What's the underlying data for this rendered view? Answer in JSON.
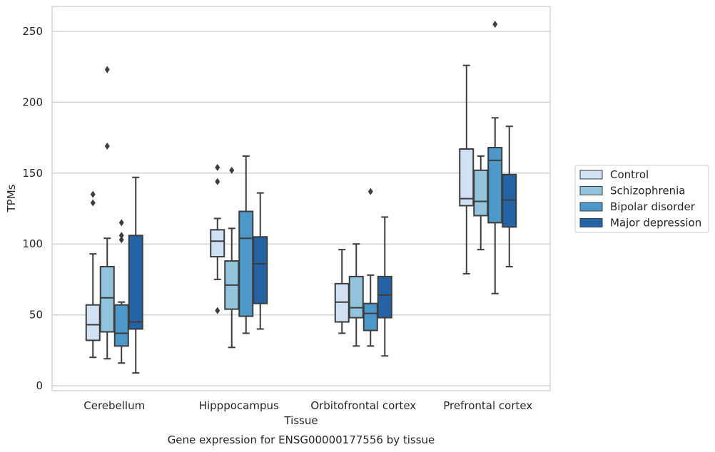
{
  "chart_data": {
    "type": "box",
    "title": "Gene expression for ENSG00000177556 by tissue",
    "xlabel": "Tissue",
    "ylabel": "TPMs",
    "ylim": [
      -3,
      268
    ],
    "yticks": [
      0,
      50,
      100,
      150,
      200,
      250
    ],
    "grid": "horizontal",
    "legend_position": "right",
    "categories": [
      "Cerebellum",
      "Hipppocampus",
      "Orbitofrontal cortex",
      "Prefrontal cortex"
    ],
    "series": [
      {
        "name": "Control",
        "color": "#cfe1f2",
        "boxes": [
          {
            "whisker_low": 20,
            "q1": 32,
            "median": 43,
            "q3": 57,
            "whisker_high": 93,
            "outliers": [
              129,
              135
            ]
          },
          {
            "whisker_low": 75,
            "q1": 91,
            "median": 102,
            "q3": 110,
            "whisker_high": 118,
            "outliers": [
              53,
              144,
              154
            ]
          },
          {
            "whisker_low": 37,
            "q1": 45,
            "median": 59,
            "q3": 72,
            "whisker_high": 96,
            "outliers": []
          },
          {
            "whisker_low": 79,
            "q1": 127,
            "median": 132,
            "q3": 167,
            "whisker_high": 226,
            "outliers": []
          }
        ]
      },
      {
        "name": "Schizophrenia",
        "color": "#93c4de",
        "boxes": [
          {
            "whisker_low": 19,
            "q1": 38,
            "median": 62,
            "q3": 84,
            "whisker_high": 104,
            "outliers": [
              169,
              223
            ]
          },
          {
            "whisker_low": 27,
            "q1": 54,
            "median": 71,
            "q3": 88,
            "whisker_high": 111,
            "outliers": [
              152
            ]
          },
          {
            "whisker_low": 28,
            "q1": 48,
            "median": 55,
            "q3": 77,
            "whisker_high": 100,
            "outliers": []
          },
          {
            "whisker_low": 96,
            "q1": 120,
            "median": 130,
            "q3": 152,
            "whisker_high": 162,
            "outliers": []
          }
        ]
      },
      {
        "name": "Bipolar disorder",
        "color": "#4b98c9",
        "boxes": [
          {
            "whisker_low": 16,
            "q1": 28,
            "median": 37,
            "q3": 57,
            "whisker_high": 59,
            "outliers": [
              103,
              106,
              115
            ]
          },
          {
            "whisker_low": 37,
            "q1": 49,
            "median": 104,
            "q3": 123,
            "whisker_high": 162,
            "outliers": []
          },
          {
            "whisker_low": 28,
            "q1": 39,
            "median": 51,
            "q3": 58,
            "whisker_high": 78,
            "outliers": [
              137
            ]
          },
          {
            "whisker_low": 65,
            "q1": 115,
            "median": 159,
            "q3": 168,
            "whisker_high": 189,
            "outliers": [
              255
            ]
          }
        ]
      },
      {
        "name": "Major depression",
        "color": "#2363a6",
        "boxes": [
          {
            "whisker_low": 9,
            "q1": 40,
            "median": 45,
            "q3": 106,
            "whisker_high": 147,
            "outliers": []
          },
          {
            "whisker_low": 40,
            "q1": 58,
            "median": 86,
            "q3": 105,
            "whisker_high": 136,
            "outliers": []
          },
          {
            "whisker_low": 21,
            "q1": 48,
            "median": 64,
            "q3": 77,
            "whisker_high": 119,
            "outliers": []
          },
          {
            "whisker_low": 84,
            "q1": 112,
            "median": 131,
            "q3": 149,
            "whisker_high": 183,
            "outliers": []
          }
        ]
      }
    ]
  }
}
